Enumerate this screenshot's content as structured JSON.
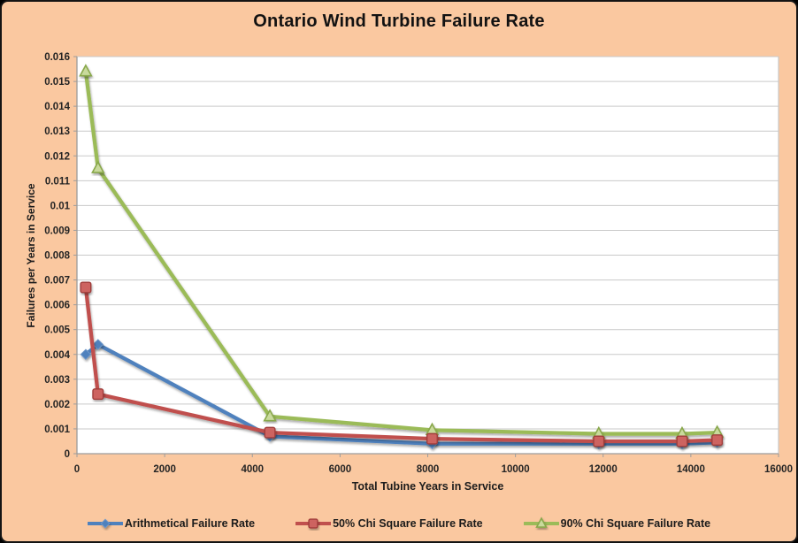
{
  "chart_data": {
    "type": "line",
    "title": "Ontario Wind Turbine Failure Rate",
    "xlabel": "Total Tubine Years in Service",
    "ylabel": "Failures per Years in Service",
    "xlim": [
      0,
      16000
    ],
    "ylim": [
      0,
      0.016
    ],
    "x_tick_labels": [
      "0",
      "2000",
      "4000",
      "6000",
      "8000",
      "10000",
      "12000",
      "14000",
      "16000"
    ],
    "y_tick_labels": [
      "0",
      "0.001",
      "0.002",
      "0.003",
      "0.004",
      "0.005",
      "0.006",
      "0.007",
      "0.008",
      "0.009",
      "0.01",
      "0.011",
      "0.012",
      "0.013",
      "0.014",
      "0.015",
      "0.016"
    ],
    "y_tick_step": 0.001,
    "grid": "horizontal",
    "legend_position": "bottom",
    "x": [
      200,
      480,
      4400,
      8100,
      11900,
      13800,
      14600
    ],
    "series": [
      {
        "name": "Arithmetical Failure Rate",
        "marker": "diamond",
        "color": "#4F81BD",
        "marker_fill": "#6E96C8",
        "marker_edge": "#3A6BA5",
        "values": [
          0.004,
          0.0044,
          0.0007,
          0.0004,
          0.0004,
          0.0004,
          0.00045
        ]
      },
      {
        "name": "50% Chi Square Failure Rate",
        "marker": "square",
        "color": "#C0504D",
        "marker_fill": "#CD6460",
        "marker_edge": "#A03D3B",
        "values": [
          0.0067,
          0.0024,
          0.00085,
          0.0006,
          0.0005,
          0.0005,
          0.00055
        ]
      },
      {
        "name": "90% Chi Square Failure Rate",
        "marker": "triangle",
        "color": "#9BBB59",
        "marker_fill": "#C9DA9C",
        "marker_edge": "#89A84C",
        "values": [
          0.0154,
          0.0115,
          0.0015,
          0.00095,
          0.0008,
          0.0008,
          0.00085
        ]
      }
    ],
    "colors": {
      "background": "#FAC8A0",
      "plot_bg": "#FFFFFF",
      "gridline": "#C9C9C9",
      "axis": "#9C9C9C",
      "text": "#242424"
    }
  }
}
